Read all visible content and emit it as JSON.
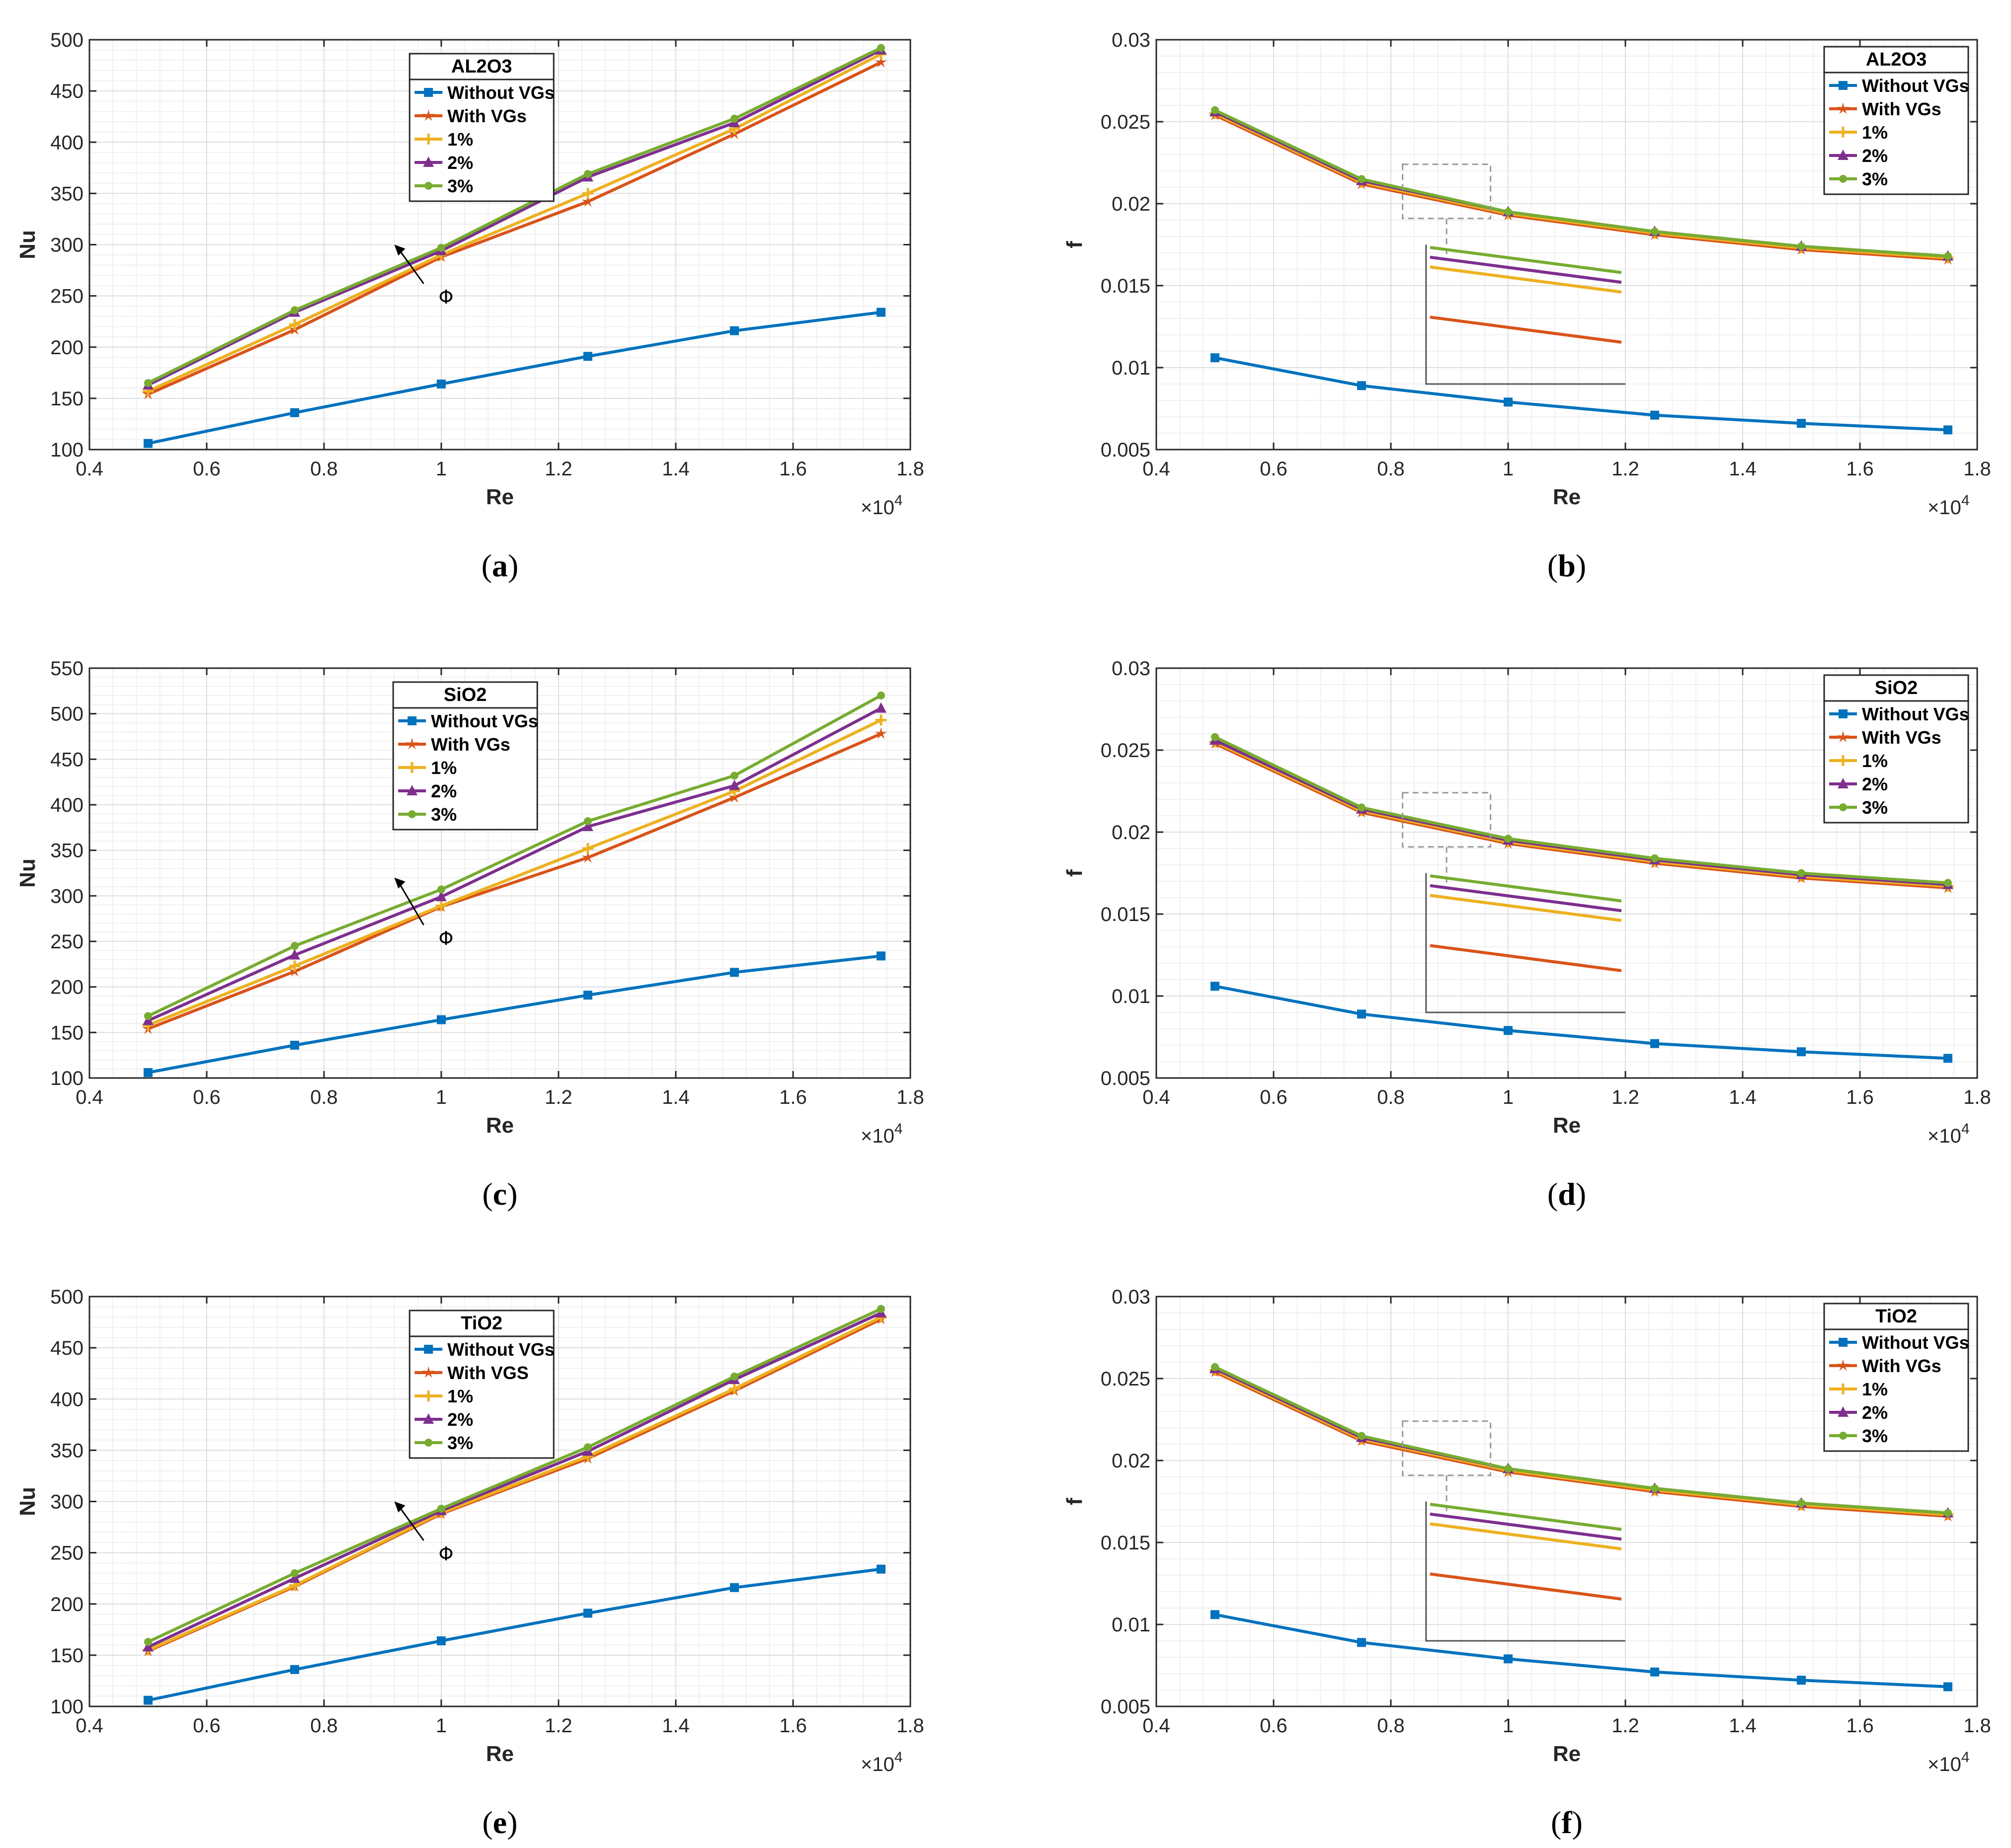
{
  "colors": {
    "without": "#0072BD",
    "with": "#D95319",
    "p1": "#EDB120",
    "p2": "#7E2F8E",
    "p3": "#77AC30"
  },
  "chart_data": [
    {
      "panel": "a",
      "caption": "a",
      "type": "line",
      "ylabel": "Nu",
      "xlabel": "Re",
      "xexp": "×10",
      "xexp_sup": "4",
      "xlim": [
        0.4,
        1.8
      ],
      "ylim": [
        100,
        500
      ],
      "xticks": [
        0.4,
        0.6,
        0.8,
        1,
        1.2,
        1.4,
        1.6,
        1.8
      ],
      "xticklabels": [
        "0.4",
        "0.6",
        "0.8",
        "1",
        "1.2",
        "1.4",
        "1.6",
        "1.8"
      ],
      "yticks": [
        100,
        150,
        200,
        250,
        300,
        350,
        400,
        450,
        500
      ],
      "yticklabels": [
        "100",
        "150",
        "200",
        "250",
        "300",
        "350",
        "400",
        "450",
        "500"
      ],
      "legend_title": "AL2O3",
      "legend_position": "top-center",
      "annotation": "Φ",
      "grid": true,
      "x": [
        0.5,
        0.75,
        1.0,
        1.25,
        1.5,
        1.75
      ],
      "series": [
        {
          "name": "Without VGs",
          "key": "without",
          "marker": "square",
          "values": [
            106,
            136,
            164,
            191,
            216,
            234
          ]
        },
        {
          "name": "With VGs",
          "key": "with",
          "marker": "star",
          "values": [
            154,
            217,
            288,
            342,
            408,
            478
          ]
        },
        {
          "name": "1%",
          "key": "p1",
          "marker": "plus",
          "values": [
            157,
            222,
            290,
            350,
            413,
            486
          ]
        },
        {
          "name": "2%",
          "key": "p2",
          "marker": "triangle",
          "values": [
            163,
            234,
            294,
            366,
            419,
            490
          ]
        },
        {
          "name": "3%",
          "key": "p3",
          "marker": "dot",
          "values": [
            165,
            236,
            297,
            369,
            423,
            492
          ]
        }
      ]
    },
    {
      "panel": "b",
      "caption": "b",
      "type": "line",
      "ylabel": "f",
      "xlabel": "Re",
      "xexp": "×10",
      "xexp_sup": "4",
      "xlim": [
        0.4,
        1.8
      ],
      "ylim": [
        0.005,
        0.03
      ],
      "xticks": [
        0.4,
        0.6,
        0.8,
        1,
        1.2,
        1.4,
        1.6,
        1.8
      ],
      "xticklabels": [
        "0.4",
        "0.6",
        "0.8",
        "1",
        "1.2",
        "1.4",
        "1.6",
        "1.8"
      ],
      "yticks": [
        0.005,
        0.01,
        0.015,
        0.02,
        0.025,
        0.03
      ],
      "yticklabels": [
        "0.005",
        "0.01",
        "0.015",
        "0.02",
        "0.025",
        "0.03"
      ],
      "legend_title": "AL2O3",
      "legend_position": "top-right",
      "grid": true,
      "inset": true,
      "x": [
        0.5,
        0.75,
        1.0,
        1.25,
        1.5,
        1.75
      ],
      "series": [
        {
          "name": "Without VGs",
          "key": "without",
          "marker": "square",
          "values": [
            0.0106,
            0.0089,
            0.0079,
            0.0071,
            0.0066,
            0.0062
          ]
        },
        {
          "name": "With VGs",
          "key": "with",
          "marker": "star",
          "values": [
            0.0254,
            0.0212,
            0.0193,
            0.0181,
            0.0172,
            0.0166
          ]
        },
        {
          "name": "1%",
          "key": "p1",
          "marker": "plus",
          "values": [
            0.0255,
            0.0213,
            0.0194,
            0.0182,
            0.0173,
            0.0167
          ]
        },
        {
          "name": "2%",
          "key": "p2",
          "marker": "triangle",
          "values": [
            0.0256,
            0.0214,
            0.0195,
            0.0183,
            0.0174,
            0.0168
          ]
        },
        {
          "name": "3%",
          "key": "p3",
          "marker": "dot",
          "values": [
            0.0257,
            0.0215,
            0.0195,
            0.0183,
            0.0174,
            0.0168
          ]
        }
      ]
    },
    {
      "panel": "c",
      "caption": "c",
      "type": "line",
      "ylabel": "Nu",
      "xlabel": "Re",
      "xexp": "×10",
      "xexp_sup": "4",
      "xlim": [
        0.4,
        1.8
      ],
      "ylim": [
        100,
        550
      ],
      "xticks": [
        0.4,
        0.6,
        0.8,
        1,
        1.2,
        1.4,
        1.6,
        1.8
      ],
      "xticklabels": [
        "0.4",
        "0.6",
        "0.8",
        "1",
        "1.2",
        "1.4",
        "1.6",
        "1.8"
      ],
      "yticks": [
        100,
        150,
        200,
        250,
        300,
        350,
        400,
        450,
        500,
        550
      ],
      "yticklabels": [
        "100",
        "150",
        "200",
        "250",
        "300",
        "350",
        "400",
        "450",
        "500",
        "550"
      ],
      "legend_title": "SiO2",
      "legend_position": "top-center",
      "annotation": "Φ",
      "grid": true,
      "x": [
        0.5,
        0.75,
        1.0,
        1.25,
        1.5,
        1.75
      ],
      "series": [
        {
          "name": "Without VGs",
          "key": "without",
          "marker": "square",
          "values": [
            106,
            136,
            164,
            191,
            216,
            234
          ]
        },
        {
          "name": "With VGs",
          "key": "with",
          "marker": "star",
          "values": [
            154,
            217,
            288,
            342,
            408,
            478
          ]
        },
        {
          "name": "1%",
          "key": "p1",
          "marker": "plus",
          "values": [
            158,
            223,
            289,
            352,
            415,
            493
          ]
        },
        {
          "name": "2%",
          "key": "p2",
          "marker": "triangle",
          "values": [
            163,
            235,
            299,
            376,
            421,
            506
          ]
        },
        {
          "name": "3%",
          "key": "p3",
          "marker": "dot",
          "values": [
            168,
            245,
            307,
            382,
            432,
            520
          ]
        }
      ]
    },
    {
      "panel": "d",
      "caption": "d",
      "type": "line",
      "ylabel": "f",
      "xlabel": "Re",
      "xexp": "×10",
      "xexp_sup": "4",
      "xlim": [
        0.4,
        1.8
      ],
      "ylim": [
        0.005,
        0.03
      ],
      "xticks": [
        0.4,
        0.6,
        0.8,
        1,
        1.2,
        1.4,
        1.6,
        1.8
      ],
      "xticklabels": [
        "0.4",
        "0.6",
        "0.8",
        "1",
        "1.2",
        "1.4",
        "1.6",
        "1.8"
      ],
      "yticks": [
        0.005,
        0.01,
        0.015,
        0.02,
        0.025,
        0.03
      ],
      "yticklabels": [
        "0.005",
        "0.01",
        "0.015",
        "0.02",
        "0.025",
        "0.03"
      ],
      "legend_title": "SiO2",
      "legend_position": "top-right",
      "grid": true,
      "inset": true,
      "x": [
        0.5,
        0.75,
        1.0,
        1.25,
        1.5,
        1.75
      ],
      "series": [
        {
          "name": "Without VGs",
          "key": "without",
          "marker": "square",
          "values": [
            0.0106,
            0.0089,
            0.0079,
            0.0071,
            0.0066,
            0.0062
          ]
        },
        {
          "name": "With VGs",
          "key": "with",
          "marker": "star",
          "values": [
            0.0254,
            0.0212,
            0.0193,
            0.0181,
            0.0172,
            0.0166
          ]
        },
        {
          "name": "1%",
          "key": "p1",
          "marker": "plus",
          "values": [
            0.0255,
            0.0213,
            0.0194,
            0.0182,
            0.0173,
            0.0167
          ]
        },
        {
          "name": "2%",
          "key": "p2",
          "marker": "triangle",
          "values": [
            0.0256,
            0.0214,
            0.0195,
            0.0183,
            0.0174,
            0.0168
          ]
        },
        {
          "name": "3%",
          "key": "p3",
          "marker": "dot",
          "values": [
            0.0258,
            0.0215,
            0.0196,
            0.0184,
            0.0175,
            0.0169
          ]
        }
      ]
    },
    {
      "panel": "e",
      "caption": "e",
      "type": "line",
      "ylabel": "Nu",
      "xlabel": "Re",
      "xexp": "×10",
      "xexp_sup": "4",
      "xlim": [
        0.4,
        1.8
      ],
      "ylim": [
        100,
        500
      ],
      "xticks": [
        0.4,
        0.6,
        0.8,
        1,
        1.2,
        1.4,
        1.6,
        1.8
      ],
      "xticklabels": [
        "0.4",
        "0.6",
        "0.8",
        "1",
        "1.2",
        "1.4",
        "1.6",
        "1.8"
      ],
      "yticks": [
        100,
        150,
        200,
        250,
        300,
        350,
        400,
        450,
        500
      ],
      "yticklabels": [
        "100",
        "150",
        "200",
        "250",
        "300",
        "350",
        "400",
        "450",
        "500"
      ],
      "legend_title": "TiO2",
      "legend_position": "top-center",
      "annotation": "Φ",
      "grid": true,
      "x": [
        0.5,
        0.75,
        1.0,
        1.25,
        1.5,
        1.75
      ],
      "series": [
        {
          "name": "Without VGs",
          "key": "without",
          "marker": "square",
          "values": [
            106,
            136,
            164,
            191,
            216,
            234
          ]
        },
        {
          "name": "With VGS",
          "key": "with",
          "marker": "star",
          "values": [
            154,
            217,
            288,
            342,
            408,
            478
          ]
        },
        {
          "name": "1%",
          "key": "p1",
          "marker": "plus",
          "values": [
            155,
            218,
            289,
            344,
            410,
            480
          ]
        },
        {
          "name": "2%",
          "key": "p2",
          "marker": "triangle",
          "values": [
            158,
            225,
            291,
            349,
            419,
            484
          ]
        },
        {
          "name": "3%",
          "key": "p3",
          "marker": "dot",
          "values": [
            163,
            230,
            293,
            353,
            422,
            488
          ]
        }
      ]
    },
    {
      "panel": "f",
      "caption": "f",
      "type": "line",
      "ylabel": "f",
      "xlabel": "Re",
      "xexp": "×10",
      "xexp_sup": "4",
      "xlim": [
        0.4,
        1.8
      ],
      "ylim": [
        0.005,
        0.03
      ],
      "xticks": [
        0.4,
        0.6,
        0.8,
        1,
        1.2,
        1.4,
        1.6,
        1.8
      ],
      "xticklabels": [
        "0.4",
        "0.6",
        "0.8",
        "1",
        "1.2",
        "1.4",
        "1.6",
        "1.8"
      ],
      "yticks": [
        0.005,
        0.01,
        0.015,
        0.02,
        0.025,
        0.03
      ],
      "yticklabels": [
        "0.005",
        "0.01",
        "0.015",
        "0.02",
        "0.025",
        "0.03"
      ],
      "legend_title": "TiO2",
      "legend_position": "top-right",
      "grid": true,
      "inset": true,
      "x": [
        0.5,
        0.75,
        1.0,
        1.25,
        1.5,
        1.75
      ],
      "series": [
        {
          "name": "Without VGs",
          "key": "without",
          "marker": "square",
          "values": [
            0.0106,
            0.0089,
            0.0079,
            0.0071,
            0.0066,
            0.0062
          ]
        },
        {
          "name": "With VGs",
          "key": "with",
          "marker": "star",
          "values": [
            0.0254,
            0.0212,
            0.0193,
            0.0181,
            0.0172,
            0.0166
          ]
        },
        {
          "name": "1%",
          "key": "p1",
          "marker": "plus",
          "values": [
            0.0255,
            0.0213,
            0.0194,
            0.0182,
            0.0173,
            0.0167
          ]
        },
        {
          "name": "2%",
          "key": "p2",
          "marker": "triangle",
          "values": [
            0.0256,
            0.0214,
            0.0195,
            0.0183,
            0.0174,
            0.0168
          ]
        },
        {
          "name": "3%",
          "key": "p3",
          "marker": "dot",
          "values": [
            0.0257,
            0.0215,
            0.0195,
            0.0183,
            0.0174,
            0.0168
          ]
        }
      ]
    }
  ]
}
